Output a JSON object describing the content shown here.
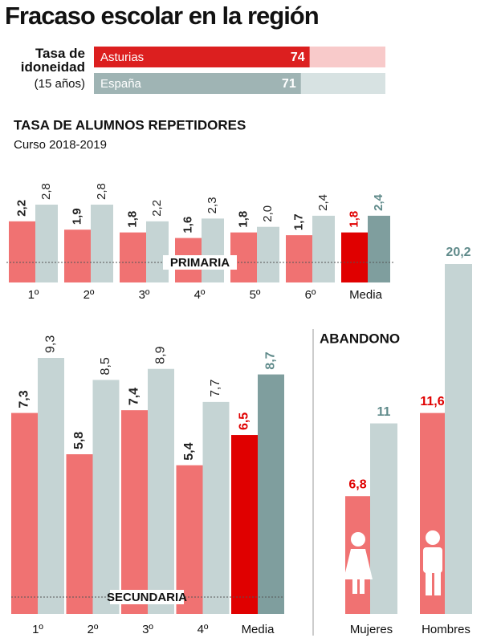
{
  "title": "Fracaso escolar en la región",
  "section_title": "TASA DE ALUMNOS REPETIDORES",
  "section_subtitle": "Curso 2018-2019",
  "chart_data": [
    {
      "type": "hbar",
      "title": "Tasa de idoneidad",
      "subtitle": "(15 años)",
      "categories": [
        "Asturias",
        "España"
      ],
      "values": [
        74,
        71
      ],
      "colors": [
        "#dc1f1f",
        "#9fb4b4"
      ],
      "track_colors": [
        "#f8caca",
        "#d7e2e2"
      ],
      "xlim": [
        0,
        100
      ]
    },
    {
      "type": "bar",
      "label": "PRIMARIA",
      "categories": [
        "1º",
        "2º",
        "3º",
        "4º",
        "5º",
        "6º",
        "Media"
      ],
      "series": [
        {
          "values": [
            2.2,
            1.9,
            1.8,
            1.6,
            1.8,
            1.7,
            1.8
          ],
          "value_labels": [
            "2,2",
            "1,9",
            "1,8",
            "1,6",
            "1,8",
            "1,7",
            "1,8"
          ],
          "colors": [
            "#f07272",
            "#f07272",
            "#f07272",
            "#f07272",
            "#f07272",
            "#f07272",
            "#e00000"
          ]
        },
        {
          "values": [
            2.8,
            2.8,
            2.2,
            2.3,
            2.0,
            2.4,
            2.4
          ],
          "value_labels": [
            "2,8",
            "2,8",
            "2,2",
            "2,3",
            "2,0",
            "2,4",
            "2,4"
          ],
          "colors": [
            "#c5d4d4",
            "#c5d4d4",
            "#c5d4d4",
            "#c5d4d4",
            "#c5d4d4",
            "#c5d4d4",
            "#7f9e9e"
          ]
        }
      ],
      "ylim": [
        0,
        2.8
      ]
    },
    {
      "type": "bar",
      "label": "SECUNDARIA",
      "categories": [
        "1º",
        "2º",
        "3º",
        "4º",
        "Media"
      ],
      "series": [
        {
          "values": [
            7.3,
            5.8,
            7.4,
            5.4,
            6.5
          ],
          "value_labels": [
            "7,3",
            "5,8",
            "7,4",
            "5,4",
            "6,5"
          ],
          "colors": [
            "#f07272",
            "#f07272",
            "#f07272",
            "#f07272",
            "#e00000"
          ]
        },
        {
          "values": [
            9.3,
            8.5,
            8.9,
            7.7,
            8.7
          ],
          "value_labels": [
            "9,3",
            "8,5",
            "8,9",
            "7,7",
            "8,7"
          ],
          "colors": [
            "#c5d4d4",
            "#c5d4d4",
            "#c5d4d4",
            "#c5d4d4",
            "#7f9e9e"
          ]
        }
      ],
      "ylim": [
        0,
        9.3
      ]
    },
    {
      "type": "bar",
      "title": "ABANDONO",
      "categories": [
        "Mujeres",
        "Hombres"
      ],
      "series": [
        {
          "values": [
            6.8,
            11.6
          ],
          "value_labels": [
            "6,8",
            "11,6"
          ],
          "colors": [
            "#f07272",
            "#f07272"
          ],
          "label_color": "#e00000"
        },
        {
          "values": [
            11,
            20.2
          ],
          "value_labels": [
            "11",
            "20,2"
          ],
          "colors": [
            "#c5d4d4",
            "#c5d4d4"
          ],
          "label_color": "#5f8a8a"
        }
      ],
      "ylim": [
        0,
        20.2
      ]
    }
  ]
}
